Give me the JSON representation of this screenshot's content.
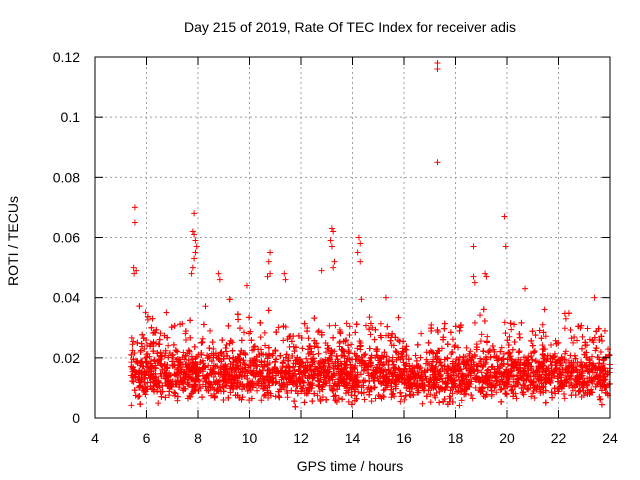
{
  "chart_data": {
    "type": "scatter",
    "title": "Day 215 of 2019, Rate Of TEC Index for receiver adis",
    "xlabel": "GPS time / hours",
    "ylabel": "ROTI / TECUs",
    "xlim": [
      4,
      24
    ],
    "ylim": [
      0,
      0.12
    ],
    "xticks": [
      4,
      6,
      8,
      10,
      12,
      14,
      16,
      18,
      20,
      22,
      24
    ],
    "xtick_labels": [
      "4",
      "6",
      "8",
      "10",
      "12",
      "14",
      "16",
      "18",
      "20",
      "22",
      "24"
    ],
    "yticks": [
      0,
      0.02,
      0.04,
      0.06,
      0.08,
      0.1,
      0.12
    ],
    "ytick_labels": [
      "0",
      "0.02",
      "0.04",
      "0.06",
      "0.08",
      "0.1",
      "0.12"
    ],
    "grid": true,
    "marker": "+",
    "color": "#ff0000",
    "points": [
      [
        5.55,
        0.07
      ],
      [
        5.55,
        0.065
      ],
      [
        5.5,
        0.05
      ],
      [
        5.52,
        0.048
      ],
      [
        5.6,
        0.049
      ],
      [
        17.3,
        0.118
      ],
      [
        17.3,
        0.116
      ],
      [
        17.3,
        0.085
      ],
      [
        7.85,
        0.068
      ],
      [
        7.8,
        0.062
      ],
      [
        7.85,
        0.061
      ],
      [
        7.9,
        0.059
      ],
      [
        7.95,
        0.057
      ],
      [
        7.9,
        0.055
      ],
      [
        7.85,
        0.053
      ],
      [
        7.8,
        0.05
      ],
      [
        7.75,
        0.048
      ],
      [
        13.2,
        0.063
      ],
      [
        13.25,
        0.062
      ],
      [
        13.15,
        0.059
      ],
      [
        13.2,
        0.057
      ],
      [
        13.3,
        0.052
      ],
      [
        13.25,
        0.05
      ],
      [
        14.25,
        0.06
      ],
      [
        14.3,
        0.058
      ],
      [
        14.2,
        0.055
      ],
      [
        14.3,
        0.052
      ],
      [
        19.9,
        0.067
      ],
      [
        19.95,
        0.057
      ],
      [
        18.7,
        0.057
      ],
      [
        19.15,
        0.048
      ],
      [
        19.2,
        0.047
      ],
      [
        18.7,
        0.047
      ],
      [
        18.75,
        0.045
      ],
      [
        10.8,
        0.055
      ],
      [
        10.75,
        0.052
      ],
      [
        10.8,
        0.048
      ],
      [
        10.7,
        0.047
      ],
      [
        8.8,
        0.048
      ],
      [
        8.85,
        0.046
      ],
      [
        9.9,
        0.044
      ],
      [
        11.35,
        0.048
      ],
      [
        11.4,
        0.046
      ],
      [
        12.8,
        0.049
      ],
      [
        15.3,
        0.04
      ],
      [
        20.7,
        0.043
      ],
      [
        23.4,
        0.04
      ]
    ],
    "dense_cloud": {
      "description": "dense band of ROTI values",
      "x_range": [
        5.4,
        24
      ],
      "typical_y_range": [
        0.004,
        0.035
      ],
      "median_y": 0.014
    }
  }
}
